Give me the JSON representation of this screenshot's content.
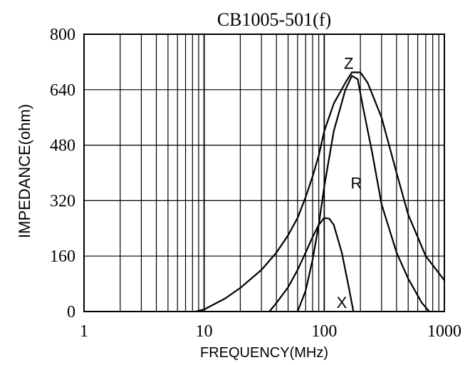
{
  "chart_data": {
    "type": "line",
    "title": "CB1005-501(f)",
    "xlabel": "FREQUENCY(MHz)",
    "ylabel": "IMPEDANCE(ohm)",
    "x_scale": "log",
    "xlim": [
      1,
      1000
    ],
    "ylim": [
      0,
      800
    ],
    "x_ticks": [
      1,
      10,
      100,
      1000
    ],
    "x_tick_labels": [
      "1",
      "10",
      "100",
      "1000"
    ],
    "y_ticks": [
      0,
      160,
      320,
      480,
      640,
      800
    ],
    "y_tick_labels": [
      "0",
      "160",
      "320",
      "480",
      "640",
      "800"
    ],
    "grid": true,
    "line_color": "#000000",
    "series": [
      {
        "name": "Z",
        "x": [
          8.5,
          10,
          15,
          20,
          30,
          40,
          50,
          60,
          70,
          80,
          90,
          100,
          120,
          150,
          170,
          200,
          230,
          300,
          400,
          500,
          700,
          1000
        ],
        "y": [
          0,
          6,
          38,
          68,
          120,
          170,
          220,
          270,
          330,
          390,
          450,
          520,
          600,
          660,
          690,
          690,
          660,
          560,
          400,
          280,
          160,
          90
        ]
      },
      {
        "name": "R",
        "x": [
          60,
          70,
          80,
          90,
          100,
          120,
          150,
          170,
          190,
          210,
          250,
          300,
          400,
          500,
          650,
          750
        ],
        "y": [
          0,
          60,
          150,
          250,
          360,
          520,
          640,
          680,
          670,
          590,
          460,
          310,
          170,
          95,
          25,
          0
        ]
      },
      {
        "name": "X",
        "x": [
          35,
          40,
          50,
          60,
          70,
          80,
          90,
          100,
          110,
          120,
          140,
          160,
          175
        ],
        "y": [
          0,
          25,
          70,
          120,
          170,
          215,
          250,
          270,
          268,
          250,
          170,
          70,
          0
        ]
      }
    ],
    "annotations": [
      "Z",
      "R",
      "X"
    ],
    "legend": "none"
  }
}
